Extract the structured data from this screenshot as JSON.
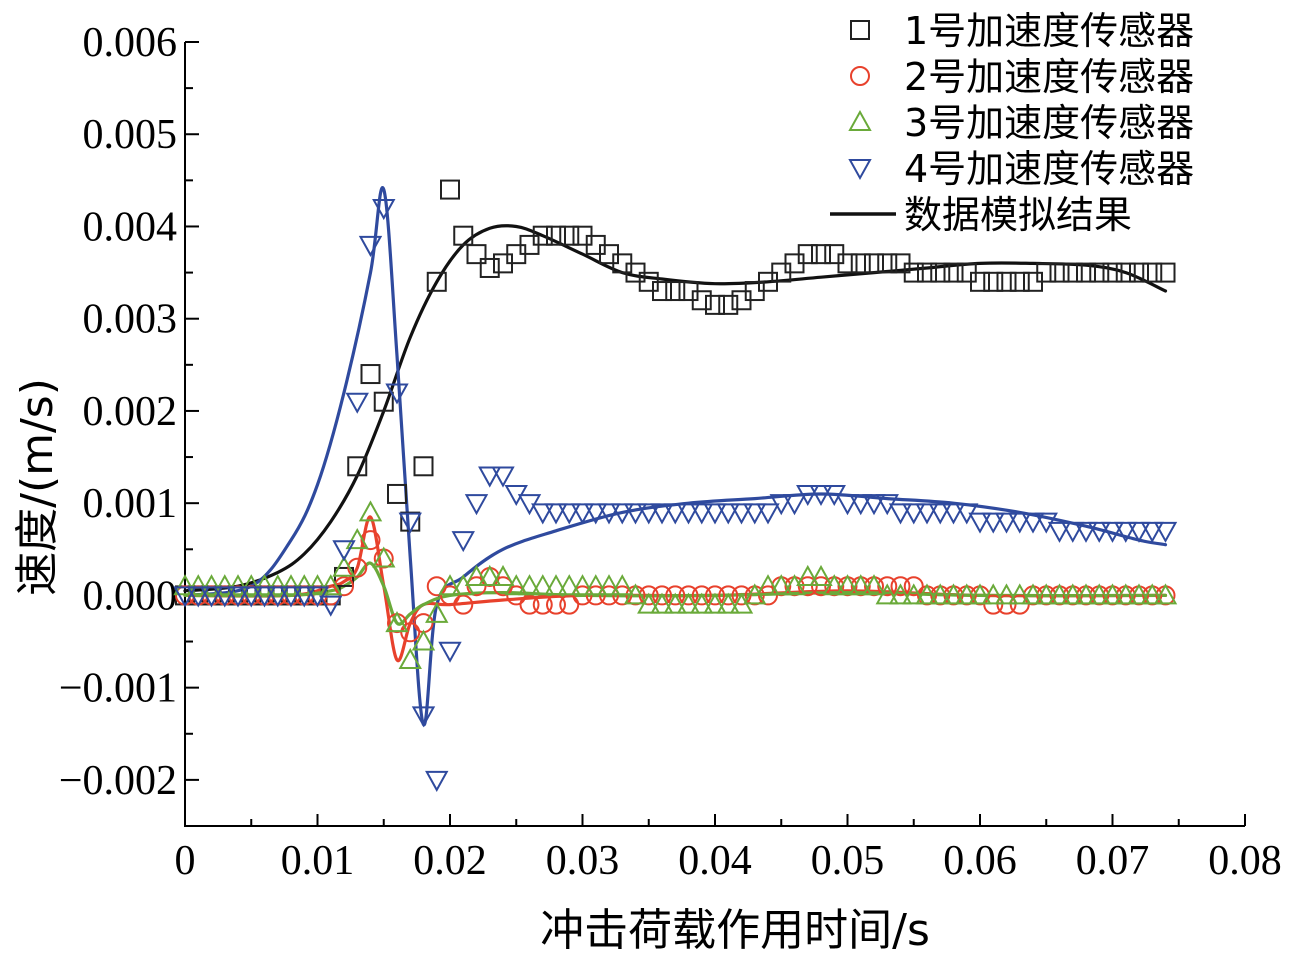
{
  "chart_data": {
    "type": "scatter",
    "title": "",
    "xlabel": "冲击荷载作用时间/s",
    "ylabel": "速度/(m/s)",
    "xlim": [
      0,
      0.08
    ],
    "ylim": [
      -0.0025,
      0.006
    ],
    "x_ticks": [
      0,
      0.01,
      0.02,
      0.03,
      0.04,
      0.05,
      0.06,
      0.07,
      0.08
    ],
    "x_tick_labels": [
      "0",
      "0.01",
      "0.02",
      "0.03",
      "0.04",
      "0.05",
      "0.06",
      "0.07",
      "0.08"
    ],
    "y_ticks": [
      -0.002,
      -0.001,
      0.0,
      0.001,
      0.002,
      0.003,
      0.004,
      0.005,
      0.006
    ],
    "y_tick_labels": [
      "−0.002",
      "−0.001",
      "0.000",
      "0.001",
      "0.002",
      "0.003",
      "0.004",
      "0.005",
      "0.006"
    ],
    "legend_position": "top-right",
    "series": [
      {
        "name": "1号加速度传感器",
        "marker": "square",
        "color": "#222222",
        "x": [
          0,
          0.001,
          0.002,
          0.003,
          0.004,
          0.005,
          0.006,
          0.007,
          0.008,
          0.009,
          0.01,
          0.011,
          0.012,
          0.013,
          0.014,
          0.015,
          0.016,
          0.017,
          0.018,
          0.019,
          0.02,
          0.021,
          0.022,
          0.023,
          0.024,
          0.025,
          0.026,
          0.027,
          0.028,
          0.029,
          0.03,
          0.031,
          0.032,
          0.033,
          0.034,
          0.035,
          0.036,
          0.037,
          0.038,
          0.039,
          0.04,
          0.041,
          0.042,
          0.043,
          0.044,
          0.045,
          0.046,
          0.047,
          0.048,
          0.049,
          0.05,
          0.051,
          0.052,
          0.053,
          0.054,
          0.055,
          0.056,
          0.057,
          0.058,
          0.059,
          0.06,
          0.061,
          0.062,
          0.063,
          0.064,
          0.065,
          0.066,
          0.067,
          0.068,
          0.069,
          0.07,
          0.071,
          0.072,
          0.073,
          0.074
        ],
        "y": [
          0,
          0,
          0,
          0,
          0,
          0,
          0,
          0,
          0,
          0,
          0,
          0,
          0.0002,
          0.0014,
          0.0024,
          0.0021,
          0.0011,
          0.0008,
          0.0014,
          0.0034,
          0.0044,
          0.0039,
          0.0037,
          0.00355,
          0.0036,
          0.0037,
          0.0038,
          0.0039,
          0.0039,
          0.0039,
          0.0039,
          0.0038,
          0.0037,
          0.0036,
          0.0035,
          0.0034,
          0.0033,
          0.0033,
          0.0033,
          0.0032,
          0.00315,
          0.00315,
          0.0032,
          0.0033,
          0.0034,
          0.0035,
          0.0036,
          0.0037,
          0.0037,
          0.0037,
          0.0036,
          0.0036,
          0.0036,
          0.0036,
          0.0036,
          0.0035,
          0.0035,
          0.0035,
          0.0035,
          0.0035,
          0.0034,
          0.0034,
          0.0034,
          0.0034,
          0.0034,
          0.0035,
          0.0035,
          0.0035,
          0.0035,
          0.0035,
          0.0035,
          0.0035,
          0.0035,
          0.0035,
          0.0035
        ]
      },
      {
        "name": "2号加速度传感器",
        "marker": "circle",
        "color": "#e8412c",
        "x": [
          0,
          0.001,
          0.002,
          0.003,
          0.004,
          0.005,
          0.006,
          0.007,
          0.008,
          0.009,
          0.01,
          0.011,
          0.012,
          0.013,
          0.014,
          0.015,
          0.016,
          0.017,
          0.018,
          0.019,
          0.02,
          0.021,
          0.022,
          0.023,
          0.024,
          0.025,
          0.026,
          0.027,
          0.028,
          0.029,
          0.03,
          0.031,
          0.032,
          0.033,
          0.034,
          0.035,
          0.036,
          0.037,
          0.038,
          0.039,
          0.04,
          0.041,
          0.042,
          0.043,
          0.044,
          0.045,
          0.046,
          0.047,
          0.048,
          0.049,
          0.05,
          0.051,
          0.052,
          0.053,
          0.054,
          0.055,
          0.056,
          0.057,
          0.058,
          0.059,
          0.06,
          0.061,
          0.062,
          0.063,
          0.064,
          0.065,
          0.066,
          0.067,
          0.068,
          0.069,
          0.07,
          0.071,
          0.072,
          0.073,
          0.074
        ],
        "y": [
          0,
          0,
          0,
          0,
          0,
          0,
          0,
          0,
          0,
          0,
          0,
          0,
          0.0001,
          0.0003,
          0.0006,
          0.0004,
          -0.0003,
          -0.0004,
          -0.0003,
          0.0001,
          0,
          -0.0001,
          0.0001,
          0.0002,
          0.0001,
          0,
          -0.0001,
          -0.0001,
          -0.0001,
          -0.0001,
          0,
          0,
          0,
          0,
          0,
          0,
          0,
          0,
          0,
          0,
          0,
          0,
          0,
          0,
          0,
          0.0001,
          0.0001,
          0.0001,
          0.0001,
          0.0001,
          0.0001,
          0.0001,
          0.0001,
          0.0001,
          0.0001,
          0.0001,
          0,
          0,
          0,
          0,
          0,
          -0.0001,
          -0.0001,
          -0.0001,
          0,
          0,
          0,
          0,
          0,
          0,
          0,
          0,
          0,
          0,
          0
        ]
      },
      {
        "name": "3号加速度传感器",
        "marker": "triangle-up",
        "color": "#6aaa3a",
        "x": [
          0,
          0.001,
          0.002,
          0.003,
          0.004,
          0.005,
          0.006,
          0.007,
          0.008,
          0.009,
          0.01,
          0.011,
          0.012,
          0.013,
          0.014,
          0.015,
          0.016,
          0.017,
          0.018,
          0.019,
          0.02,
          0.021,
          0.022,
          0.023,
          0.024,
          0.025,
          0.026,
          0.027,
          0.028,
          0.029,
          0.03,
          0.031,
          0.032,
          0.033,
          0.034,
          0.035,
          0.036,
          0.037,
          0.038,
          0.039,
          0.04,
          0.041,
          0.042,
          0.043,
          0.044,
          0.045,
          0.046,
          0.047,
          0.048,
          0.049,
          0.05,
          0.051,
          0.052,
          0.053,
          0.054,
          0.055,
          0.056,
          0.057,
          0.058,
          0.059,
          0.06,
          0.061,
          0.062,
          0.063,
          0.064,
          0.065,
          0.066,
          0.067,
          0.068,
          0.069,
          0.07,
          0.071,
          0.072,
          0.073,
          0.074
        ],
        "y": [
          0.0001,
          0.0001,
          0.0001,
          0.0001,
          0.0001,
          0.0001,
          0.0001,
          0.0001,
          0.0001,
          0.0001,
          0.0001,
          0.0001,
          0.0003,
          0.0006,
          0.0009,
          0.0004,
          -0.0003,
          -0.0007,
          -0.0005,
          -0.0002,
          0.0001,
          0.0001,
          0.0002,
          0.0002,
          0.0002,
          0.0001,
          0.0001,
          0.0001,
          0.0001,
          0.0001,
          0.0001,
          0.0001,
          0.0001,
          0.0001,
          0,
          -0.0001,
          -0.0001,
          -0.0001,
          -0.0001,
          -0.0001,
          -0.0001,
          -0.0001,
          -0.0001,
          0,
          0.0001,
          0.0001,
          0.0001,
          0.0002,
          0.0002,
          0.0001,
          0.0001,
          0.0001,
          0.0001,
          0,
          0,
          0,
          0,
          0,
          0,
          0,
          0,
          0,
          0,
          0,
          0,
          0,
          0,
          0,
          0,
          0,
          0,
          0,
          0,
          0,
          0
        ]
      },
      {
        "name": "4号加速度传感器",
        "marker": "triangle-down",
        "color": "#2f4a9e",
        "x": [
          0,
          0.001,
          0.002,
          0.003,
          0.004,
          0.005,
          0.006,
          0.007,
          0.008,
          0.009,
          0.01,
          0.011,
          0.012,
          0.013,
          0.014,
          0.015,
          0.016,
          0.017,
          0.018,
          0.019,
          0.02,
          0.021,
          0.022,
          0.023,
          0.024,
          0.025,
          0.026,
          0.027,
          0.028,
          0.029,
          0.03,
          0.031,
          0.032,
          0.033,
          0.034,
          0.035,
          0.036,
          0.037,
          0.038,
          0.039,
          0.04,
          0.041,
          0.042,
          0.043,
          0.044,
          0.045,
          0.046,
          0.047,
          0.048,
          0.049,
          0.05,
          0.051,
          0.052,
          0.053,
          0.054,
          0.055,
          0.056,
          0.057,
          0.058,
          0.059,
          0.06,
          0.061,
          0.062,
          0.063,
          0.064,
          0.065,
          0.066,
          0.067,
          0.068,
          0.069,
          0.07,
          0.071,
          0.072,
          0.073,
          0.074
        ],
        "y": [
          0,
          0,
          0,
          0,
          0,
          0,
          0,
          0,
          0,
          0,
          0,
          -0.0001,
          0.0005,
          0.0021,
          0.0038,
          0.0042,
          0.0022,
          0.0008,
          -0.0013,
          -0.002,
          -0.0006,
          0.0006,
          0.001,
          0.0013,
          0.0013,
          0.0011,
          0.001,
          0.0009,
          0.0009,
          0.0009,
          0.0009,
          0.0009,
          0.0009,
          0.0009,
          0.0009,
          0.0009,
          0.0009,
          0.0009,
          0.0009,
          0.0009,
          0.0009,
          0.0009,
          0.0009,
          0.0009,
          0.0009,
          0.001,
          0.001,
          0.0011,
          0.0011,
          0.0011,
          0.001,
          0.001,
          0.001,
          0.001,
          0.0009,
          0.0009,
          0.0009,
          0.0009,
          0.0009,
          0.0009,
          0.0008,
          0.0008,
          0.0008,
          0.0008,
          0.0008,
          0.0008,
          0.0007,
          0.0007,
          0.0007,
          0.0007,
          0.0007,
          0.0007,
          0.0007,
          0.0007,
          0.0007
        ]
      }
    ],
    "fit_lines": [
      {
        "name": "数据模拟结果",
        "color": "#111111",
        "x": [
          0,
          0.004,
          0.007,
          0.009,
          0.011,
          0.013,
          0.015,
          0.017,
          0.019,
          0.021,
          0.023,
          0.025,
          0.027,
          0.03,
          0.033,
          0.036,
          0.04,
          0.044,
          0.048,
          0.052,
          0.056,
          0.06,
          0.064,
          0.068,
          0.071,
          0.074
        ],
        "y": [
          5e-05,
          0.0001,
          0.00025,
          0.00045,
          0.0008,
          0.0013,
          0.002,
          0.0028,
          0.0034,
          0.0038,
          0.00398,
          0.004,
          0.0039,
          0.0037,
          0.0035,
          0.00343,
          0.00338,
          0.0034,
          0.00345,
          0.0035,
          0.00355,
          0.0036,
          0.0036,
          0.00358,
          0.0035,
          0.0033
        ]
      },
      {
        "name": "",
        "color": "#2f4a9e",
        "x": [
          0,
          0.005,
          0.008,
          0.01,
          0.012,
          0.014,
          0.015,
          0.016,
          0.017,
          0.018,
          0.019,
          0.021,
          0.024,
          0.028,
          0.033,
          0.038,
          0.043,
          0.048,
          0.053,
          0.058,
          0.063,
          0.068,
          0.072,
          0.074
        ],
        "y": [
          0,
          0.0001,
          0.0006,
          0.0012,
          0.0022,
          0.0035,
          0.0044,
          0.0026,
          0.0004,
          -0.0014,
          -0.0001,
          0.0002,
          0.0005,
          0.0007,
          0.0009,
          0.001,
          0.00105,
          0.0011,
          0.00105,
          0.001,
          0.0009,
          0.00075,
          0.0006,
          0.00055
        ]
      },
      {
        "name": "",
        "color": "#e8412c",
        "x": [
          0,
          0.008,
          0.011,
          0.012,
          0.013,
          0.014,
          0.015,
          0.016,
          0.017,
          0.018,
          0.02,
          0.024,
          0.03,
          0.04,
          0.05,
          0.06,
          0.074
        ],
        "y": [
          0,
          0,
          0.0001,
          0.00015,
          0.0003,
          0.00085,
          0.0001,
          -0.0007,
          -0.0003,
          -0.0001,
          -0.0001,
          -5e-05,
          0,
          0,
          5e-05,
          0,
          0
        ]
      },
      {
        "name": "",
        "color": "#6aaa3a",
        "x": [
          0,
          0.008,
          0.011,
          0.012,
          0.013,
          0.014,
          0.015,
          0.016,
          0.017,
          0.018,
          0.02,
          0.024,
          0.03,
          0.04,
          0.05,
          0.06,
          0.074
        ],
        "y": [
          0,
          0,
          5e-05,
          0.0001,
          0.0002,
          0.00035,
          0.0001,
          -0.0003,
          -0.0002,
          -0.0001,
          0,
          3e-05,
          0,
          0,
          3e-05,
          0,
          0
        ]
      }
    ]
  }
}
